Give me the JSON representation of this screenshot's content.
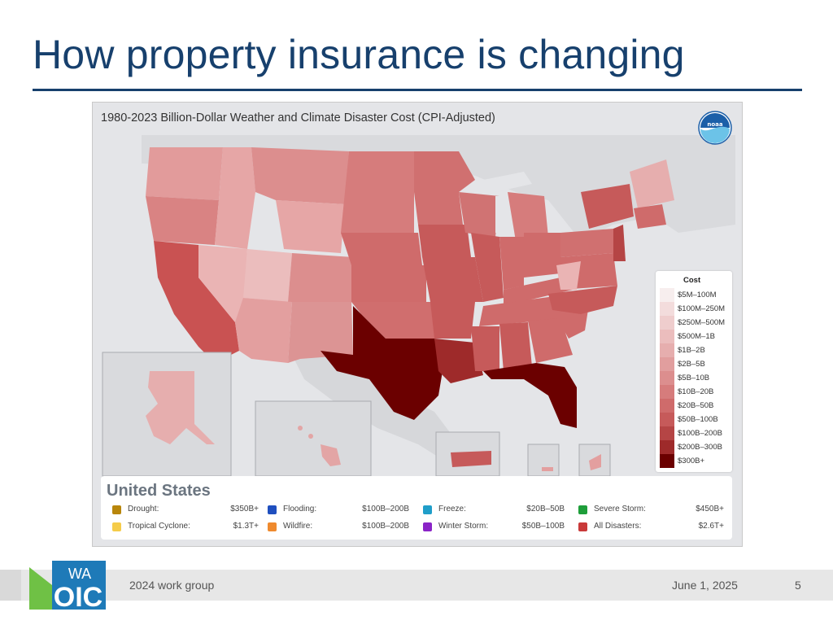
{
  "slide": {
    "title": "How property insurance is changing",
    "footer_text": "2024 work group",
    "date": "June 1, 2025",
    "page_number": "5"
  },
  "logo": {
    "text_top": "WA",
    "text_bottom": "OIC",
    "colors": [
      "#1e7ab8",
      "#6fc145"
    ]
  },
  "figure": {
    "title": "1980-2023 Billion-Dollar Weather and Climate Disaster Cost (CPI-Adjusted)",
    "logo_icon": "noaa-logo-icon",
    "legend": {
      "title": "Cost",
      "items": [
        {
          "label": "$5M–100M",
          "color": "#f7eeee"
        },
        {
          "label": "$100M–250M",
          "color": "#f3dcdc"
        },
        {
          "label": "$250M–500M",
          "color": "#efcdcd"
        },
        {
          "label": "$500M–1B",
          "color": "#ebbdbd"
        },
        {
          "label": "$1B–2B",
          "color": "#e6aeae"
        },
        {
          "label": "$2B–5B",
          "color": "#e19e9e"
        },
        {
          "label": "$5B–10B",
          "color": "#dc8e8e"
        },
        {
          "label": "$10B–20B",
          "color": "#d67c7c"
        },
        {
          "label": "$20B–50B",
          "color": "#cf6b6b"
        },
        {
          "label": "$50B–100B",
          "color": "#c65a5a"
        },
        {
          "label": "$100B–200B",
          "color": "#b54545"
        },
        {
          "label": "$200B–300B",
          "color": "#9e2a2a"
        },
        {
          "label": "$300B+",
          "color": "#6b0000"
        }
      ]
    },
    "summary": {
      "title": "United States",
      "hazards": [
        {
          "name": "Drought:",
          "value": "$350B+",
          "color": "#b8860b"
        },
        {
          "name": "Flooding:",
          "value": "$100B–200B",
          "color": "#1f4fbf"
        },
        {
          "name": "Freeze:",
          "value": "$20B–50B",
          "color": "#1f9ec9"
        },
        {
          "name": "Severe Storm:",
          "value": "$450B+",
          "color": "#1e9e3a"
        },
        {
          "name": "Tropical Cyclone:",
          "value": "$1.3T+",
          "color": "#f5cc4a"
        },
        {
          "name": "Wildfire:",
          "value": "$100B–200B",
          "color": "#ef8a2e"
        },
        {
          "name": "Winter Storm:",
          "value": "$50B–100B",
          "color": "#8a24c7"
        },
        {
          "name": "All Disasters:",
          "value": "$2.6T+",
          "color": "#c93a3a"
        }
      ]
    }
  }
}
